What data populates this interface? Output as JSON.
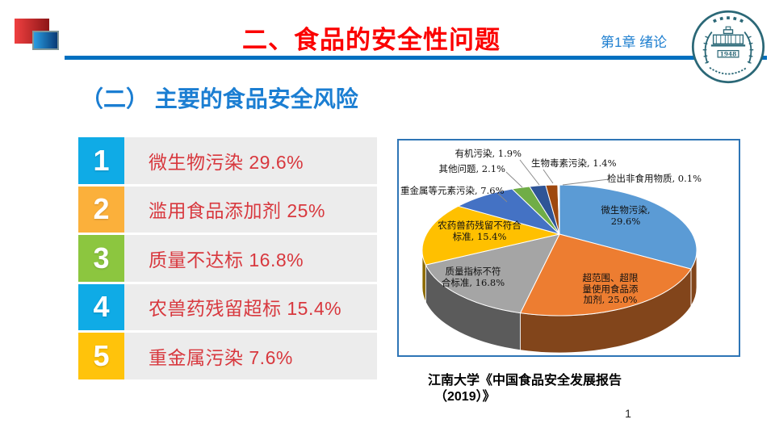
{
  "slide": {
    "title": "二、食品的安全性问题",
    "chapter_tag": "第1章 绪论",
    "subtitle": "（二） 主要的食品安全风险",
    "seal_year": "1948",
    "page_number": "1"
  },
  "risk_list": {
    "items": [
      {
        "rank": "1",
        "label": "微生物污染 29.6%",
        "color": "#0fabe6"
      },
      {
        "rank": "2",
        "label": "滥用食品添加剂 25%",
        "color": "#fbb03b"
      },
      {
        "rank": "3",
        "label": "质量不达标 16.8%",
        "color": "#8cc63f"
      },
      {
        "rank": "4",
        "label": "农兽药残留超标 15.4%",
        "color": "#0fabe6"
      },
      {
        "rank": "5",
        "label": "重金属污染 7.6%",
        "color": "#ffc30b"
      }
    ]
  },
  "chart_data": {
    "type": "pie",
    "style": "3d",
    "unit": "%",
    "direction": "clockwise",
    "start_angle_deg": 0,
    "legend": "none",
    "slices": [
      {
        "name": "微生物污染",
        "value": 29.6,
        "color": "#5b9bd5",
        "label_lines": [
          "微生物污染,",
          "29.6%"
        ]
      },
      {
        "name": "超范围、超限量使用食品添加剂",
        "value": 25.0,
        "color": "#ed7d31",
        "label_lines": [
          "超范围、超限",
          "量使用食品添",
          "加剂, 25.0%"
        ]
      },
      {
        "name": "质量指标不符合标准",
        "value": 16.8,
        "color": "#a5a5a5",
        "label_lines": [
          "质量指标不符",
          "合标准, 16.8%"
        ]
      },
      {
        "name": "农药兽药残留不符合标准",
        "value": 15.4,
        "color": "#ffc000",
        "label_lines": [
          "农药兽药残留不符合",
          "标准, 15.4%"
        ]
      },
      {
        "name": "重金属等元素污染",
        "value": 7.6,
        "color": "#4472c4",
        "label_lines": [
          "重金属等元素污染, 7.6%"
        ]
      },
      {
        "name": "其他问题",
        "value": 2.1,
        "color": "#70ad47",
        "label_lines": [
          "其他问题, 2.1%"
        ]
      },
      {
        "name": "有机污染",
        "value": 1.9,
        "color": "#2f5597",
        "label_lines": [
          "有机污染, 1.9%"
        ]
      },
      {
        "name": "生物毒素污染",
        "value": 1.4,
        "color": "#9e480e",
        "label_lines": [
          "生物毒素污染, 1.4%"
        ]
      },
      {
        "name": "检出非食用物质",
        "value": 0.1,
        "color": "#636363",
        "label_lines": [
          "检出非食用物质, 0.1%"
        ]
      }
    ]
  },
  "caption": {
    "line1": "江南大学《中国食品安全发展报告",
    "line2": "（2019）》"
  },
  "colors": {
    "title_red": "#fb0000",
    "heading_blue": "#1b7ed2",
    "divider_blue": "#0070c0",
    "chart_border_blue": "#2e75b6",
    "list_text_red": "#d8383e",
    "list_bar_bg": "#ececec",
    "seal_teal": "#2b6877"
  }
}
